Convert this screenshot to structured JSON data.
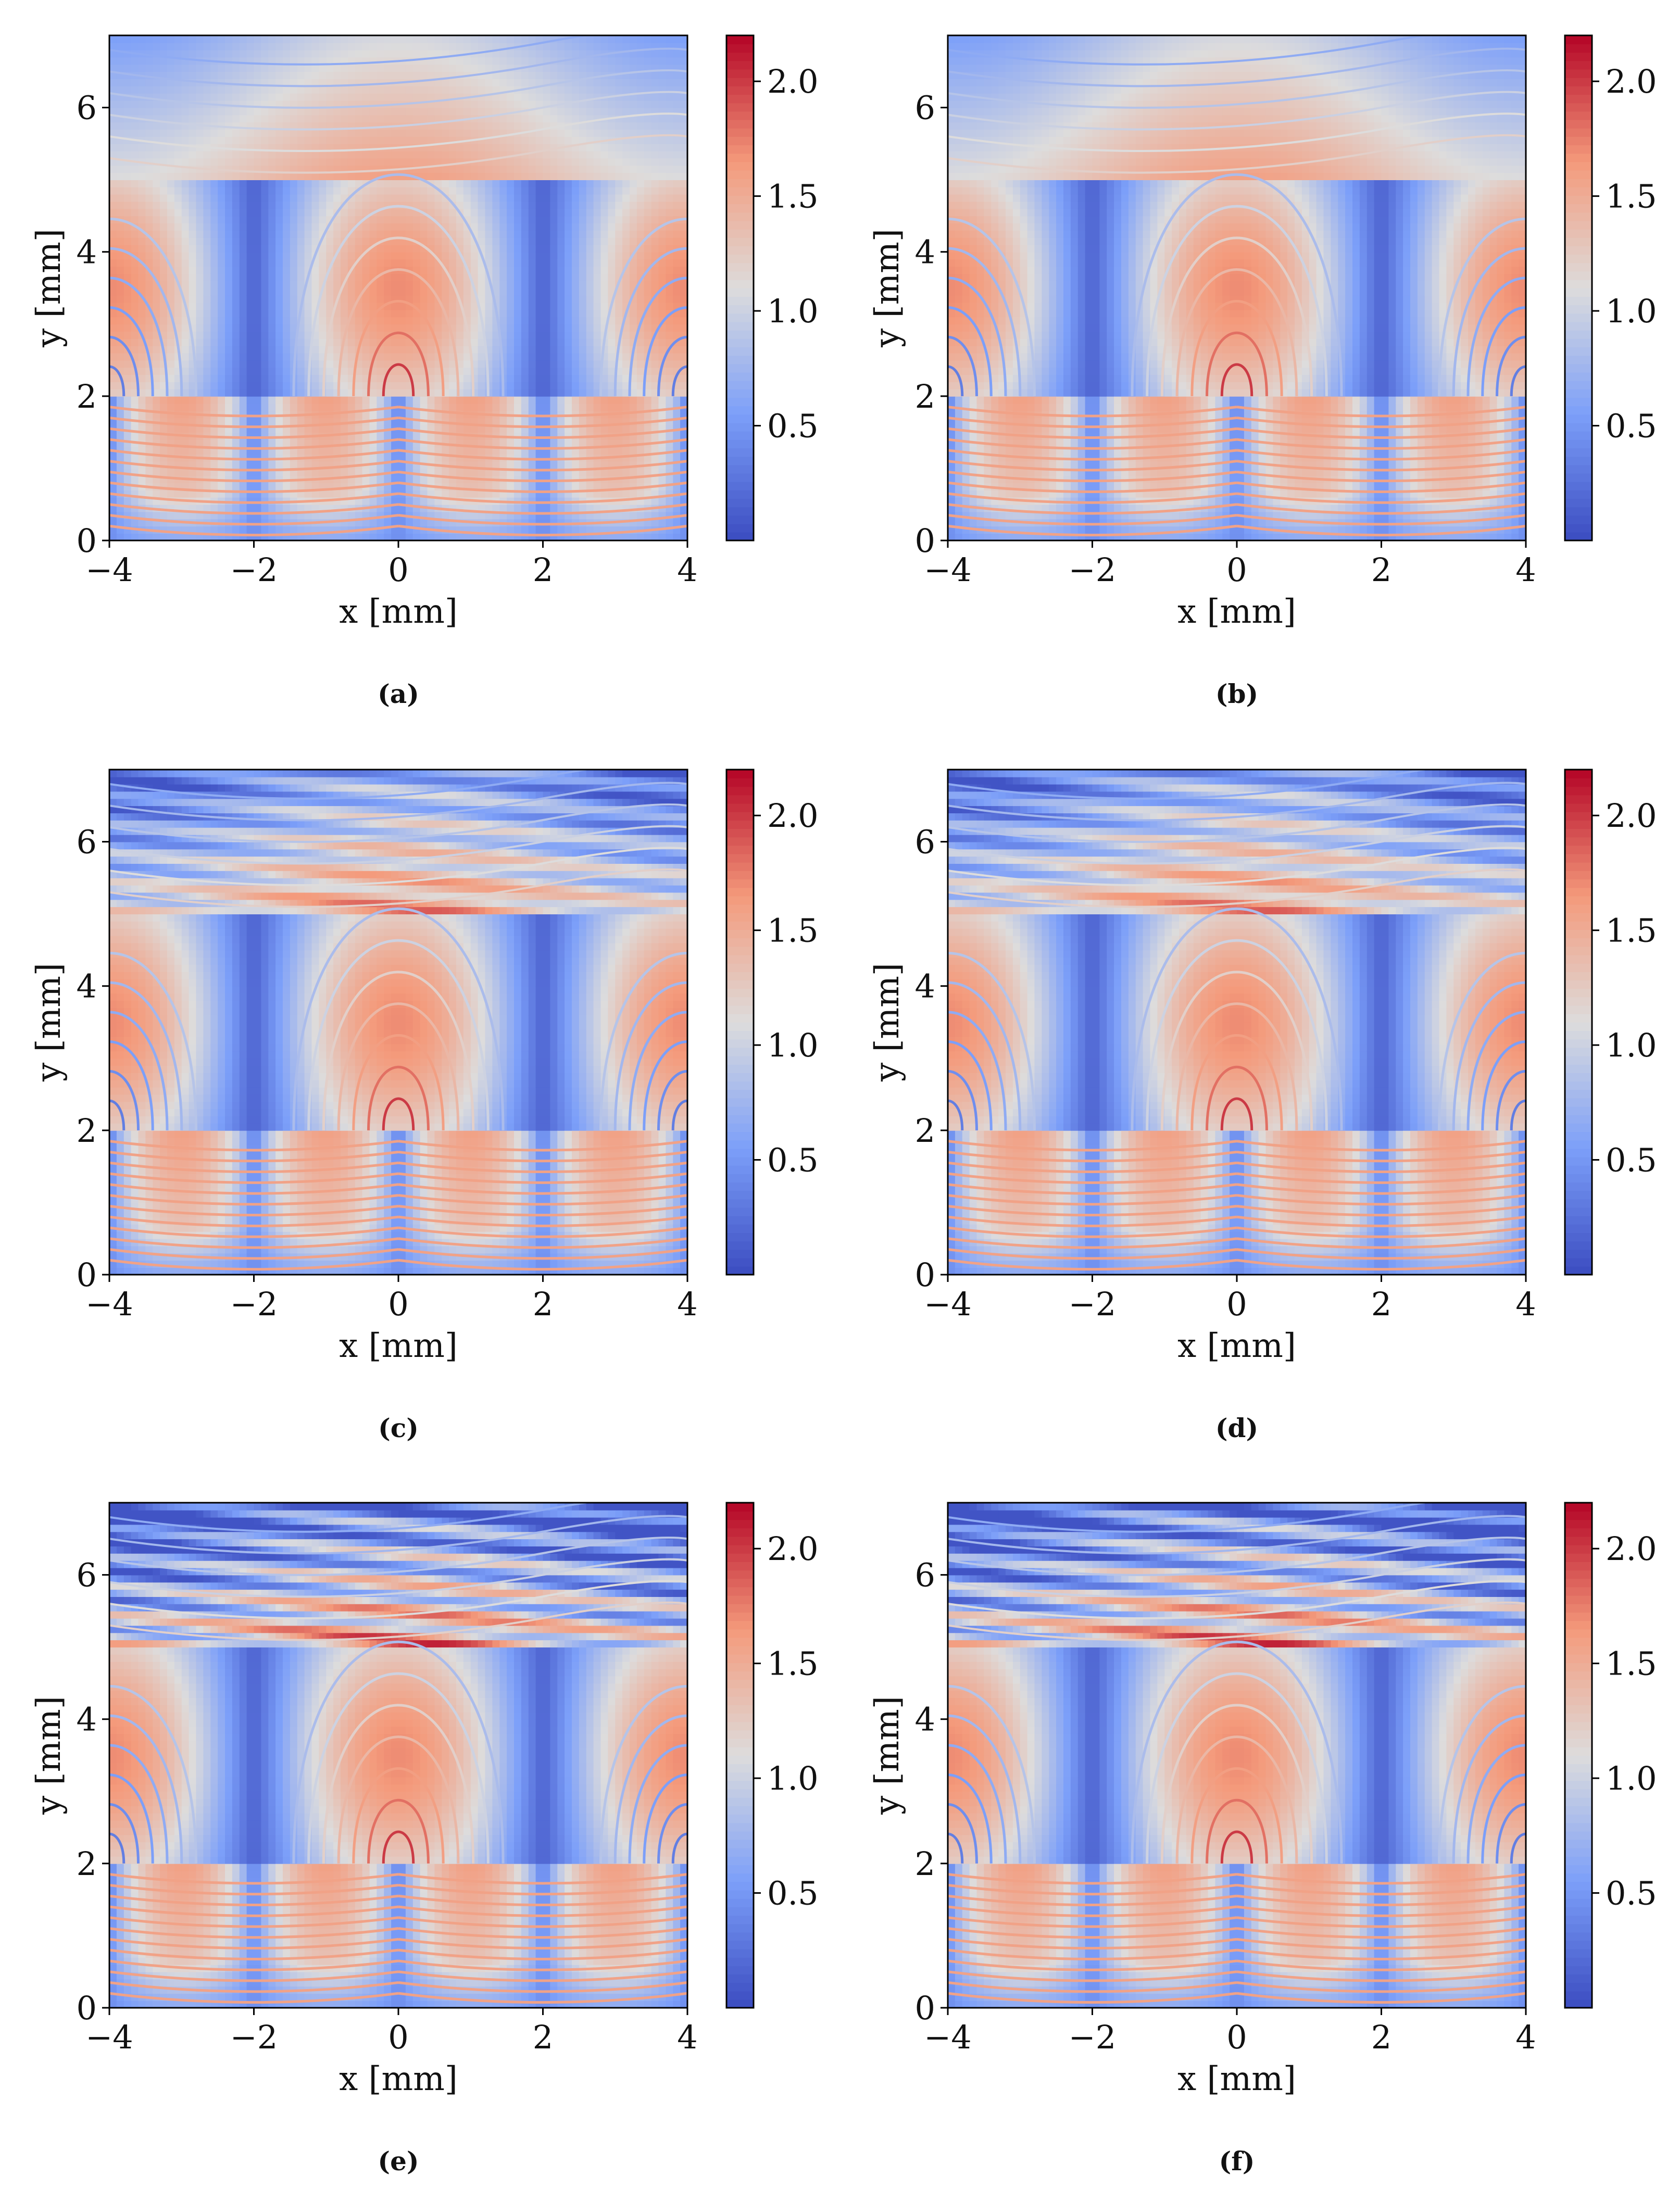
{
  "colors": {
    "cold": "#3b4cc0",
    "neutral": "#dddcdc",
    "hot": "#b40426",
    "axis": "#000000"
  },
  "chart_data": [
    {
      "panel": "a",
      "panel_label": "(a)",
      "type": "heatmap",
      "xlabel": "x [mm]",
      "ylabel": "y [mm]",
      "xlim": [
        -4,
        4
      ],
      "ylim": [
        0,
        7
      ],
      "x_ticks": [
        -4,
        -2,
        0,
        2,
        4
      ],
      "y_ticks": [
        0,
        2,
        4,
        6
      ],
      "x_tick_labels": [
        "−4",
        "−2",
        "0",
        "2",
        "4"
      ],
      "y_tick_labels": [
        "0",
        "2",
        "4",
        "6"
      ],
      "colorbar": {
        "range": [
          0.0,
          2.2
        ],
        "ticks": [
          0.5,
          1.0,
          1.5,
          2.0
        ],
        "tick_labels": [
          "0.5",
          "1.0",
          "1.5",
          "2.0"
        ]
      },
      "layer_boundaries_y": [
        2,
        5
      ],
      "top_layer_ripple": 0.0
    },
    {
      "panel": "b",
      "panel_label": "(b)",
      "type": "heatmap",
      "xlabel": "x [mm]",
      "ylabel": "y [mm]",
      "xlim": [
        -4,
        4
      ],
      "ylim": [
        0,
        7
      ],
      "x_ticks": [
        -4,
        -2,
        0,
        2,
        4
      ],
      "y_ticks": [
        0,
        2,
        4,
        6
      ],
      "x_tick_labels": [
        "−4",
        "−2",
        "0",
        "2",
        "4"
      ],
      "y_tick_labels": [
        "0",
        "2",
        "4",
        "6"
      ],
      "colorbar": {
        "range": [
          0.0,
          2.2
        ],
        "ticks": [
          0.5,
          1.0,
          1.5,
          2.0
        ],
        "tick_labels": [
          "0.5",
          "1.0",
          "1.5",
          "2.0"
        ]
      },
      "layer_boundaries_y": [
        2,
        5
      ],
      "top_layer_ripple": 0.0
    },
    {
      "panel": "c",
      "panel_label": "(c)",
      "type": "heatmap",
      "xlabel": "x [mm]",
      "ylabel": "y [mm]",
      "xlim": [
        -4,
        4
      ],
      "ylim": [
        0,
        7
      ],
      "x_ticks": [
        -4,
        -2,
        0,
        2,
        4
      ],
      "y_ticks": [
        0,
        2,
        4,
        6
      ],
      "x_tick_labels": [
        "−4",
        "−2",
        "0",
        "2",
        "4"
      ],
      "y_tick_labels": [
        "0",
        "2",
        "4",
        "6"
      ],
      "colorbar": {
        "range": [
          0.0,
          2.2
        ],
        "ticks": [
          0.5,
          1.0,
          1.5,
          2.0
        ],
        "tick_labels": [
          "0.5",
          "1.0",
          "1.5",
          "2.0"
        ]
      },
      "layer_boundaries_y": [
        2,
        5
      ],
      "top_layer_ripple": 0.6
    },
    {
      "panel": "d",
      "panel_label": "(d)",
      "type": "heatmap",
      "xlabel": "x [mm]",
      "ylabel": "y [mm]",
      "xlim": [
        -4,
        4
      ],
      "ylim": [
        0,
        7
      ],
      "x_ticks": [
        -4,
        -2,
        0,
        2,
        4
      ],
      "y_ticks": [
        0,
        2,
        4,
        6
      ],
      "x_tick_labels": [
        "−4",
        "−2",
        "0",
        "2",
        "4"
      ],
      "y_tick_labels": [
        "0",
        "2",
        "4",
        "6"
      ],
      "colorbar": {
        "range": [
          0.0,
          2.2
        ],
        "ticks": [
          0.5,
          1.0,
          1.5,
          2.0
        ],
        "tick_labels": [
          "0.5",
          "1.0",
          "1.5",
          "2.0"
        ]
      },
      "layer_boundaries_y": [
        2,
        5
      ],
      "top_layer_ripple": 0.6
    },
    {
      "panel": "e",
      "panel_label": "(e)",
      "type": "heatmap",
      "xlabel": "x [mm]",
      "ylabel": "y [mm]",
      "xlim": [
        -4,
        4
      ],
      "ylim": [
        0,
        7
      ],
      "x_ticks": [
        -4,
        -2,
        0,
        2,
        4
      ],
      "y_ticks": [
        0,
        2,
        4,
        6
      ],
      "x_tick_labels": [
        "−4",
        "−2",
        "0",
        "2",
        "4"
      ],
      "y_tick_labels": [
        "0",
        "2",
        "4",
        "6"
      ],
      "colorbar": {
        "range": [
          0.0,
          2.2
        ],
        "ticks": [
          0.5,
          1.0,
          1.5,
          2.0
        ],
        "tick_labels": [
          "0.5",
          "1.0",
          "1.5",
          "2.0"
        ]
      },
      "layer_boundaries_y": [
        2,
        5
      ],
      "top_layer_ripple": 1.0
    },
    {
      "panel": "f",
      "panel_label": "(f)",
      "type": "heatmap",
      "xlabel": "x [mm]",
      "ylabel": "y [mm]",
      "xlim": [
        -4,
        4
      ],
      "ylim": [
        0,
        7
      ],
      "x_ticks": [
        -4,
        -2,
        0,
        2,
        4
      ],
      "y_ticks": [
        0,
        2,
        4,
        6
      ],
      "x_tick_labels": [
        "−4",
        "−2",
        "0",
        "2",
        "4"
      ],
      "y_tick_labels": [
        "0",
        "2",
        "4",
        "6"
      ],
      "colorbar": {
        "range": [
          0.0,
          2.2
        ],
        "ticks": [
          0.5,
          1.0,
          1.5,
          2.0
        ],
        "tick_labels": [
          "0.5",
          "1.0",
          "1.5",
          "2.0"
        ]
      },
      "layer_boundaries_y": [
        2,
        5
      ],
      "top_layer_ripple": 1.0
    }
  ]
}
